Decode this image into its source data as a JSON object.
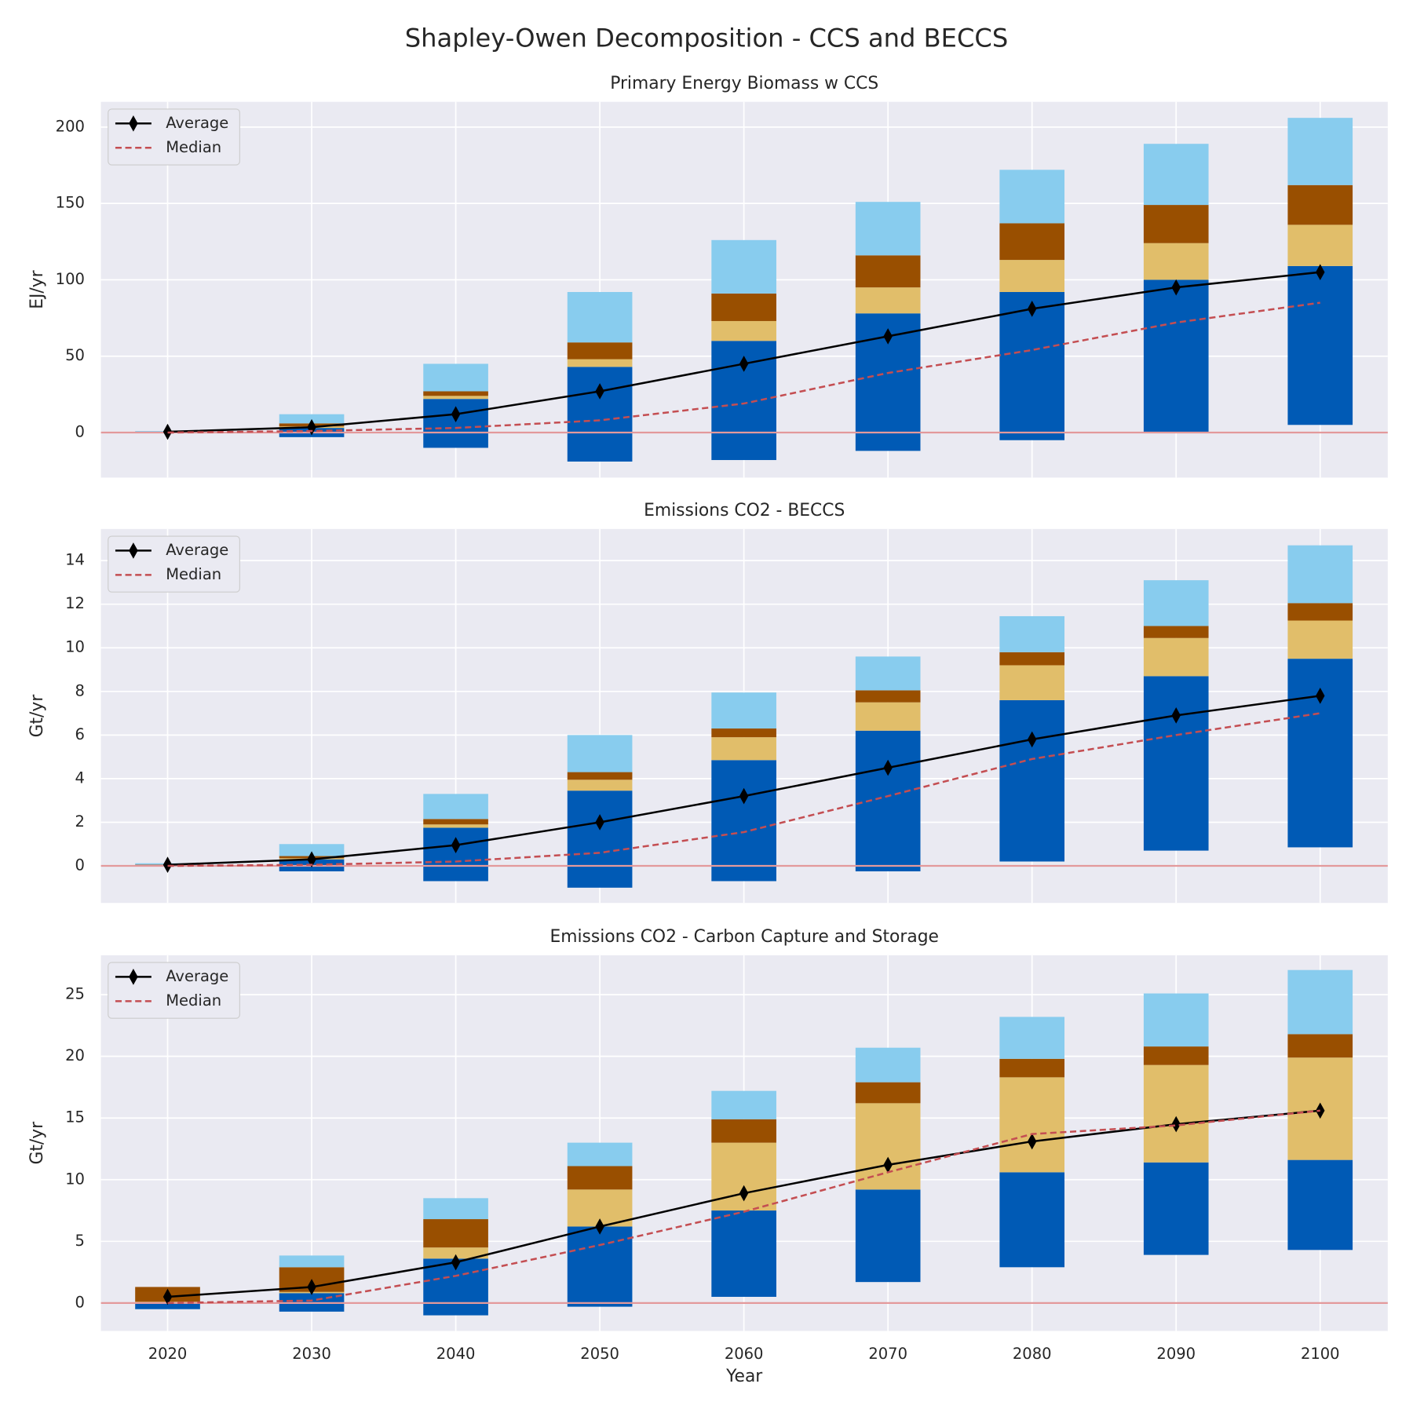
{
  "title": "Shapley-Owen Decomposition - CCS and BECCS",
  "x_label": "Year",
  "categories": [
    2020,
    2030,
    2040,
    2050,
    2060,
    2070,
    2080,
    2090,
    2100
  ],
  "chart_data": [
    {
      "type": "bar",
      "title": "Primary Energy Biomass w CCS",
      "y_label": "EJ/yr",
      "ylim": [
        -29.5,
        216.5
      ],
      "yticks": [
        0,
        50,
        100,
        150,
        200
      ],
      "grid": true,
      "legend": "upper left",
      "hline": 0,
      "hline_color": "#e3999b",
      "bottom": [
        -0.5,
        -3,
        -10,
        -19,
        -18,
        -12,
        -5,
        0,
        5
      ],
      "series": [
        {
          "color": "#005ab5",
          "values": [
            0.8,
            6,
            32,
            62,
            78,
            90,
            97,
            100,
            104
          ]
        },
        {
          "color": "#e1be6a",
          "values": [
            0.1,
            1,
            2,
            5,
            13,
            17,
            21,
            24,
            27
          ]
        },
        {
          "color": "#994f00",
          "values": [
            0.1,
            2,
            3,
            11,
            18,
            21,
            24,
            25,
            26
          ]
        },
        {
          "color": "#88ccee",
          "values": [
            0.5,
            6,
            18,
            33,
            35,
            35,
            35,
            40,
            44
          ]
        }
      ],
      "lines": [
        {
          "name": "Average",
          "color": "#000000",
          "marker": "diamond",
          "dashed": false,
          "values": [
            0.5,
            3.5,
            12,
            27,
            45,
            63,
            81,
            95,
            105
          ]
        },
        {
          "name": "Median",
          "color": "#c44e52",
          "marker": "none",
          "dashed": true,
          "values": [
            0,
            1,
            3,
            8,
            19,
            39,
            54,
            72,
            85
          ]
        }
      ]
    },
    {
      "type": "bar",
      "title": "Emissions CO2 - BECCS",
      "y_label": "Gt/yr",
      "ylim": [
        -1.7,
        15.45
      ],
      "yticks": [
        0,
        2,
        4,
        6,
        8,
        10,
        12,
        14
      ],
      "grid": true,
      "legend": "upper left",
      "hline": 0,
      "hline_color": "#e3999b",
      "bottom": [
        0,
        -0.25,
        -0.7,
        -1.0,
        -0.7,
        -0.25,
        0.2,
        0.7,
        0.85
      ],
      "series": [
        {
          "color": "#005ab5",
          "values": [
            0.05,
            0.55,
            2.45,
            4.45,
            5.55,
            6.45,
            7.4,
            8.0,
            8.65
          ]
        },
        {
          "color": "#e1be6a",
          "values": [
            0.01,
            0.05,
            0.15,
            0.5,
            1.05,
            1.3,
            1.6,
            1.75,
            1.75
          ]
        },
        {
          "color": "#994f00",
          "values": [
            0.01,
            0.1,
            0.25,
            0.35,
            0.4,
            0.55,
            0.6,
            0.55,
            0.8
          ]
        },
        {
          "color": "#88ccee",
          "values": [
            0.05,
            0.55,
            1.15,
            1.7,
            1.65,
            1.55,
            1.65,
            2.1,
            2.65
          ]
        }
      ],
      "lines": [
        {
          "name": "Average",
          "color": "#000000",
          "marker": "diamond",
          "dashed": false,
          "values": [
            0.05,
            0.3,
            0.95,
            2.0,
            3.2,
            4.5,
            5.8,
            6.9,
            7.8
          ]
        },
        {
          "name": "Median",
          "color": "#c44e52",
          "marker": "none",
          "dashed": true,
          "values": [
            0,
            0.05,
            0.2,
            0.6,
            1.55,
            3.2,
            4.9,
            6.0,
            7.0
          ]
        }
      ]
    },
    {
      "type": "bar",
      "title": "Emissions CO2 - Carbon Capture and Storage",
      "y_label": "Gt/yr",
      "ylim": [
        -2.27,
        28.2
      ],
      "yticks": [
        0,
        5,
        10,
        15,
        20,
        25
      ],
      "grid": true,
      "legend": "upper left",
      "hline": 0,
      "hline_color": "#e3999b",
      "bottom": [
        -0.5,
        -0.7,
        -1.0,
        -0.3,
        0.5,
        1.7,
        2.9,
        3.9,
        4.3
      ],
      "series": [
        {
          "color": "#005ab5",
          "values": [
            0.5,
            1.5,
            4.6,
            6.5,
            7.0,
            7.5,
            7.7,
            7.5,
            7.3
          ]
        },
        {
          "color": "#e1be6a",
          "values": [
            0.1,
            0.1,
            0.9,
            3.0,
            5.5,
            7.0,
            7.7,
            7.9,
            8.3
          ]
        },
        {
          "color": "#994f00",
          "values": [
            1.2,
            2.0,
            2.3,
            1.9,
            1.9,
            1.7,
            1.5,
            1.5,
            1.9
          ]
        },
        {
          "color": "#88ccee",
          "values": [
            0,
            0.95,
            1.7,
            1.9,
            2.3,
            2.8,
            3.4,
            4.3,
            5.2
          ]
        }
      ],
      "lines": [
        {
          "name": "Average",
          "color": "#000000",
          "marker": "diamond",
          "dashed": false,
          "values": [
            0.5,
            1.3,
            3.3,
            6.2,
            8.9,
            11.2,
            13.1,
            14.5,
            15.6
          ]
        },
        {
          "name": "Median",
          "color": "#c44e52",
          "marker": "none",
          "dashed": true,
          "values": [
            0,
            0.2,
            2.2,
            4.7,
            7.4,
            10.6,
            13.7,
            14.4,
            15.6
          ]
        }
      ]
    }
  ]
}
